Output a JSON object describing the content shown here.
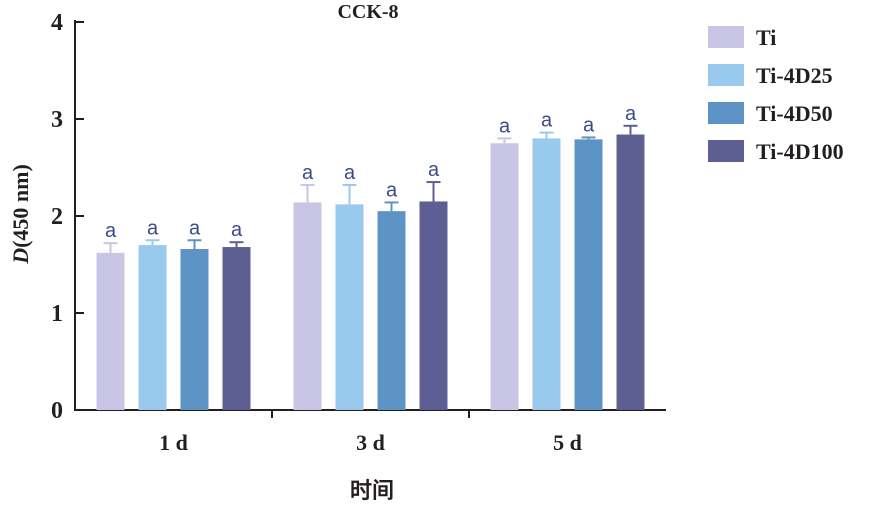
{
  "chart_data": {
    "type": "bar",
    "title": "CCK-8",
    "ylabel_italic": "D",
    "ylabel_rest": "(450 nm)",
    "xlabel": "时间",
    "categories": [
      "1 d",
      "3 d",
      "5 d"
    ],
    "ylim": [
      0,
      4
    ],
    "yticks": [
      "0",
      "1",
      "2",
      "3",
      "4"
    ],
    "grid": false,
    "legend_position": "top-right",
    "significance_label": "a",
    "series": [
      {
        "name": "Ti",
        "color": "#c8c6e4",
        "values": [
          1.62,
          2.14,
          2.75
        ],
        "errors": [
          0.1,
          0.18,
          0.05
        ]
      },
      {
        "name": "Ti-4D25",
        "color": "#99c9ed",
        "values": [
          1.7,
          2.12,
          2.8
        ],
        "errors": [
          0.05,
          0.2,
          0.06
        ]
      },
      {
        "name": "Ti-4D50",
        "color": "#5d93c5",
        "values": [
          1.66,
          2.05,
          2.79
        ],
        "errors": [
          0.09,
          0.09,
          0.02
        ]
      },
      {
        "name": "Ti-4D100",
        "color": "#5d5f93",
        "values": [
          1.68,
          2.15,
          2.84
        ],
        "errors": [
          0.05,
          0.2,
          0.09
        ]
      }
    ]
  }
}
